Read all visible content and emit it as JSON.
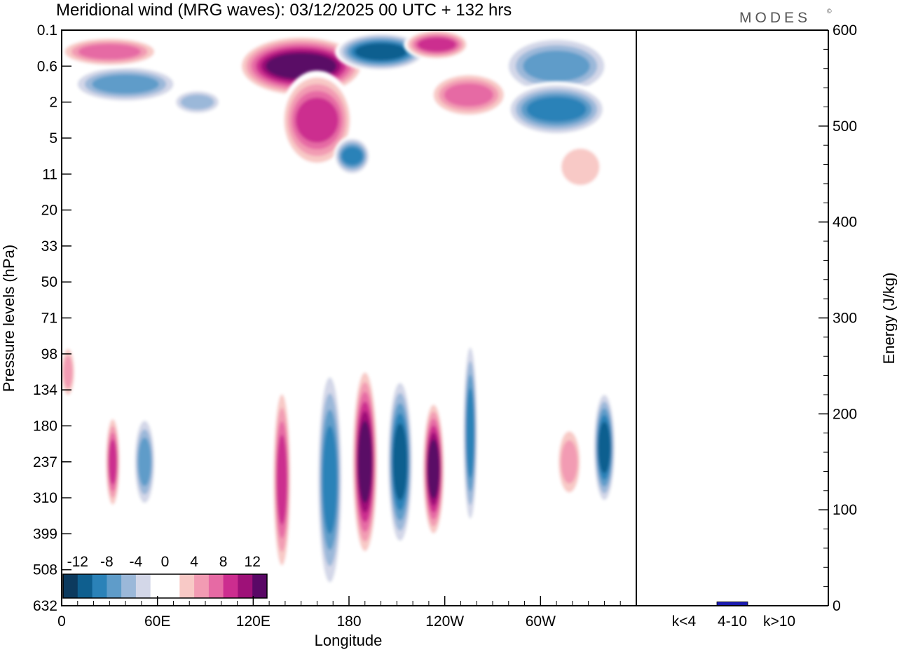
{
  "title": "Meridional wind (MRG waves):  03/12/2025  00 UTC  + 132 hrs",
  "brand": "MODES",
  "brand_mark": "©",
  "chart_data": [
    {
      "type": "heatmap",
      "title": "Meridional wind (MRG waves)",
      "xlabel": "Longitude",
      "ylabel": "Pressure levels (hPa)",
      "x_ticks": [
        "0",
        "60E",
        "120E",
        "180",
        "120W",
        "60W"
      ],
      "x_tick_values": [
        0,
        60,
        120,
        180,
        240,
        300
      ],
      "xlim": [
        0,
        360
      ],
      "y_ticks": [
        "0.1",
        "0.6",
        "2",
        "5",
        "11",
        "20",
        "33",
        "50",
        "71",
        "98",
        "134",
        "180",
        "237",
        "310",
        "399",
        "508",
        "632"
      ],
      "colorbar_labels": [
        "-12",
        "-8",
        "-4",
        "0",
        "4",
        "8",
        "12"
      ],
      "colorbar_colors": [
        "#0c3a5e",
        "#0f5f8f",
        "#2b82b8",
        "#5f9cc9",
        "#9bb8d9",
        "#d3d7e8",
        "#ffffff",
        "#ffffff",
        "#f8c9c6",
        "#f29bb3",
        "#e66aa4",
        "#cc2d8f",
        "#9e1178",
        "#5a0866"
      ],
      "features": [
        {
          "lon": 190,
          "p_level_index": 12.0,
          "value": 14,
          "width_deg": 7,
          "height_levels": 5.0
        },
        {
          "lon": 212,
          "p_level_index": 12.0,
          "value": -11,
          "width_deg": 7,
          "height_levels": 4.5
        },
        {
          "lon": 233,
          "p_level_index": 12.2,
          "value": 13,
          "width_deg": 6,
          "height_levels": 3.6
        },
        {
          "lon": 256,
          "p_level_index": 11.2,
          "value": -9,
          "width_deg": 4,
          "height_levels": 5.0
        },
        {
          "lon": 168,
          "p_level_index": 12.5,
          "value": -10,
          "width_deg": 7,
          "height_levels": 6.0
        },
        {
          "lon": 138,
          "p_level_index": 12.5,
          "value": 9,
          "width_deg": 5,
          "height_levels": 5.0
        },
        {
          "lon": 52,
          "p_level_index": 12.0,
          "value": -8,
          "width_deg": 6,
          "height_levels": 2.5
        },
        {
          "lon": 32,
          "p_level_index": 12.0,
          "value": 9,
          "width_deg": 4,
          "height_levels": 2.5
        },
        {
          "lon": 340,
          "p_level_index": 11.6,
          "value": -12,
          "width_deg": 6,
          "height_levels": 3.0
        },
        {
          "lon": 318,
          "p_level_index": 12.0,
          "value": 6,
          "width_deg": 7,
          "height_levels": 2.0
        },
        {
          "lon": 4,
          "p_level_index": 9.5,
          "value": 6,
          "width_deg": 4,
          "height_levels": 1.5
        },
        {
          "lon": 150,
          "p_level_index": 1.0,
          "value": 13,
          "width_deg": 35,
          "height_levels": 1.6
        },
        {
          "lon": 160,
          "p_level_index": 2.5,
          "value": 10,
          "width_deg": 20,
          "height_levels": 2.5
        },
        {
          "lon": 200,
          "p_level_index": 0.6,
          "value": -11,
          "width_deg": 25,
          "height_levels": 1.0
        },
        {
          "lon": 235,
          "p_level_index": 0.4,
          "value": 10,
          "width_deg": 18,
          "height_levels": 0.8
        },
        {
          "lon": 40,
          "p_level_index": 1.5,
          "value": -8,
          "width_deg": 30,
          "height_levels": 1.0
        },
        {
          "lon": 30,
          "p_level_index": 0.6,
          "value": 8,
          "width_deg": 28,
          "height_levels": 0.8
        },
        {
          "lon": 310,
          "p_level_index": 1.0,
          "value": -8,
          "width_deg": 30,
          "height_levels": 1.6
        },
        {
          "lon": 310,
          "p_level_index": 2.2,
          "value": -9,
          "width_deg": 28,
          "height_levels": 1.4
        },
        {
          "lon": 182,
          "p_level_index": 3.5,
          "value": -10,
          "width_deg": 10,
          "height_levels": 1.0
        },
        {
          "lon": 255,
          "p_level_index": 1.8,
          "value": 7,
          "width_deg": 22,
          "height_levels": 1.2
        },
        {
          "lon": 85,
          "p_level_index": 2.0,
          "value": -5,
          "width_deg": 14,
          "height_levels": 0.7
        },
        {
          "lon": 325,
          "p_level_index": 3.8,
          "value": 4,
          "width_deg": 14,
          "height_levels": 1.4
        }
      ]
    },
    {
      "type": "bar",
      "categories": [
        "k<4",
        "4-10",
        "k>10"
      ],
      "values": [
        0,
        4,
        0
      ],
      "ylabel": "Energy (J/kg)",
      "ylim": [
        0,
        600
      ],
      "y_ticks": [
        "0",
        "100",
        "200",
        "300",
        "400",
        "500",
        "600"
      ],
      "y_tick_values": [
        0,
        100,
        200,
        300,
        400,
        500,
        600
      ],
      "bar_color": "#1b1bb0"
    }
  ]
}
